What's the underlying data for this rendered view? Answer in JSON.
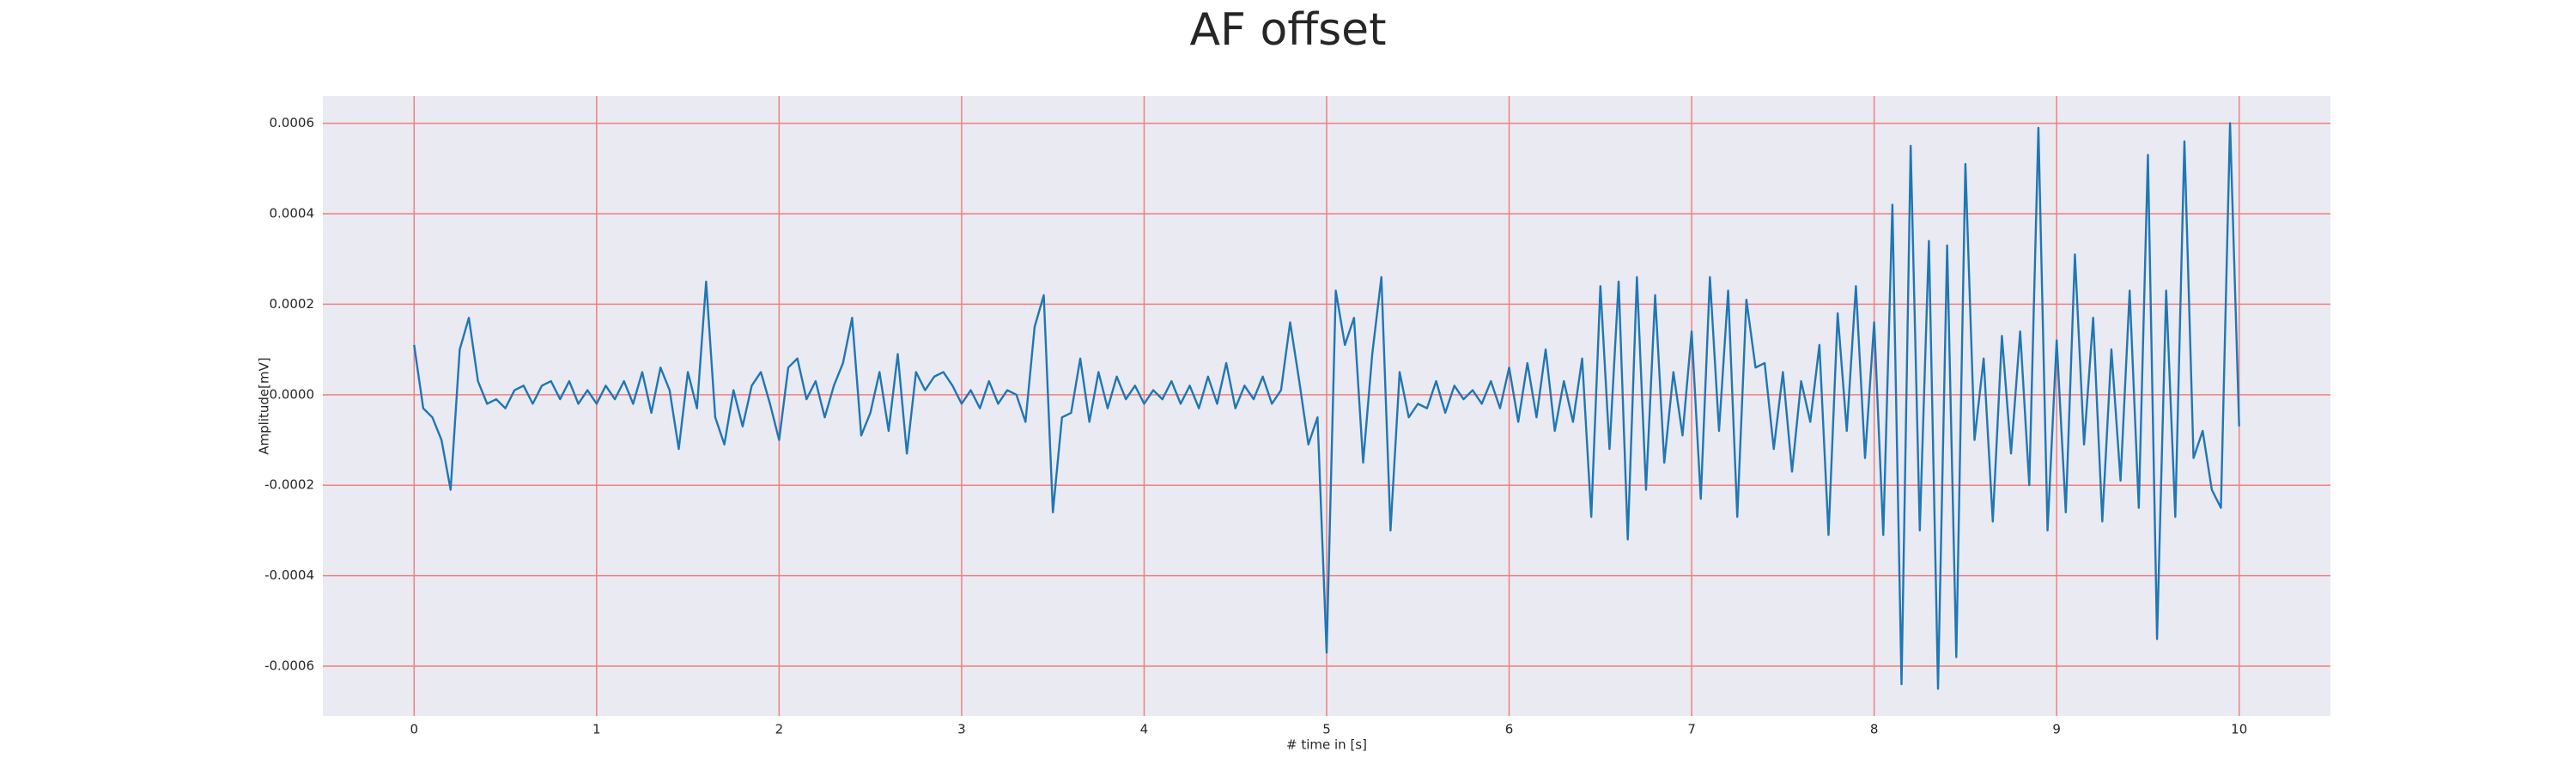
{
  "chart_data": {
    "type": "line",
    "title": "AF offset",
    "x_label": "# time in [s]",
    "y_label": "Amplitude[mV]",
    "x": [
      0,
      0.05,
      0.1,
      0.15,
      0.2,
      0.25,
      0.3,
      0.35,
      0.4,
      0.45,
      0.5,
      0.55,
      0.6,
      0.65,
      0.7,
      0.75,
      0.8,
      0.85,
      0.9,
      0.95,
      1,
      1.05,
      1.1,
      1.15,
      1.2,
      1.25,
      1.3,
      1.35,
      1.4,
      1.45,
      1.5,
      1.55,
      1.6,
      1.65,
      1.7,
      1.75,
      1.8,
      1.85,
      1.9,
      1.95,
      2,
      2.05,
      2.1,
      2.15,
      2.2,
      2.25,
      2.3,
      2.35,
      2.4,
      2.45,
      2.5,
      2.55,
      2.6,
      2.65,
      2.7,
      2.75,
      2.8,
      2.85,
      2.9,
      2.95,
      3,
      3.05,
      3.1,
      3.15,
      3.2,
      3.25,
      3.3,
      3.35,
      3.4,
      3.45,
      3.5,
      3.55,
      3.6,
      3.65,
      3.7,
      3.75,
      3.8,
      3.85,
      3.9,
      3.95,
      4,
      4.05,
      4.1,
      4.15,
      4.2,
      4.25,
      4.3,
      4.35,
      4.4,
      4.45,
      4.5,
      4.55,
      4.6,
      4.65,
      4.7,
      4.75,
      4.8,
      4.85,
      4.9,
      4.95,
      5,
      5.05,
      5.1,
      5.15,
      5.2,
      5.25,
      5.3,
      5.35,
      5.4,
      5.45,
      5.5,
      5.55,
      5.6,
      5.65,
      5.7,
      5.75,
      5.8,
      5.85,
      5.9,
      5.95,
      6,
      6.05,
      6.1,
      6.15,
      6.2,
      6.25,
      6.3,
      6.35,
      6.4,
      6.45,
      6.5,
      6.55,
      6.6,
      6.65,
      6.7,
      6.75,
      6.8,
      6.85,
      6.9,
      6.95,
      7,
      7.05,
      7.1,
      7.15,
      7.2,
      7.25,
      7.3,
      7.35,
      7.4,
      7.45,
      7.5,
      7.55,
      7.6,
      7.65,
      7.7,
      7.75,
      7.8,
      7.85,
      7.9,
      7.95,
      8,
      8.05,
      8.1,
      8.15,
      8.2,
      8.25,
      8.3,
      8.35,
      8.4,
      8.45,
      8.5,
      8.55,
      8.6,
      8.65,
      8.7,
      8.75,
      8.8,
      8.85,
      8.9,
      8.95,
      9,
      9.05,
      9.1,
      9.15,
      9.2,
      9.25,
      9.3,
      9.35,
      9.4,
      9.45,
      9.5,
      9.55,
      9.6,
      9.65,
      9.7,
      9.75,
      9.8,
      9.85,
      9.9,
      9.95,
      10
    ],
    "series": [
      {
        "name": "AF offset",
        "color": "#1f77b4",
        "values": [
          0.00011,
          -3e-05,
          -5e-05,
          -0.0001,
          -0.00021,
          0.0001,
          0.00017,
          3e-05,
          -2e-05,
          -1e-05,
          -3e-05,
          1e-05,
          2e-05,
          -2e-05,
          2e-05,
          3e-05,
          -1e-05,
          3e-05,
          -2e-05,
          1e-05,
          -2e-05,
          2e-05,
          -1e-05,
          3e-05,
          -2e-05,
          5e-05,
          -4e-05,
          6e-05,
          1e-05,
          -0.00012,
          5e-05,
          -3e-05,
          0.00025,
          -5e-05,
          -0.00011,
          1e-05,
          -7e-05,
          2e-05,
          5e-05,
          -2e-05,
          -0.0001,
          6e-05,
          8e-05,
          -1e-05,
          3e-05,
          -5e-05,
          2e-05,
          7e-05,
          0.00017,
          -9e-05,
          -4e-05,
          5e-05,
          -8e-05,
          9e-05,
          -0.00013,
          5e-05,
          1e-05,
          4e-05,
          5e-05,
          2e-05,
          -2e-05,
          1e-05,
          -3e-05,
          3e-05,
          -2e-05,
          1e-05,
          0,
          -6e-05,
          0.00015,
          0.00022,
          -0.00026,
          -5e-05,
          -4e-05,
          8e-05,
          -6e-05,
          5e-05,
          -3e-05,
          4e-05,
          -1e-05,
          2e-05,
          -2e-05,
          1e-05,
          -1e-05,
          3e-05,
          -2e-05,
          2e-05,
          -3e-05,
          4e-05,
          -2e-05,
          7e-05,
          -3e-05,
          2e-05,
          -1e-05,
          4e-05,
          -2e-05,
          1e-05,
          0.00016,
          3e-05,
          -0.00011,
          -5e-05,
          -0.00057,
          0.00023,
          0.00011,
          0.00017,
          -0.00015,
          9e-05,
          0.00026,
          -0.0003,
          5e-05,
          -5e-05,
          -2e-05,
          -3e-05,
          3e-05,
          -4e-05,
          2e-05,
          -1e-05,
          1e-05,
          -2e-05,
          3e-05,
          -3e-05,
          6e-05,
          -6e-05,
          7e-05,
          -5e-05,
          0.0001,
          -8e-05,
          3e-05,
          -6e-05,
          8e-05,
          -0.00027,
          0.00024,
          -0.00012,
          0.00025,
          -0.00032,
          0.00026,
          -0.00021,
          0.00022,
          -0.00015,
          5e-05,
          -9e-05,
          0.00014,
          -0.00023,
          0.00026,
          -8e-05,
          0.00023,
          -0.00027,
          0.00021,
          6e-05,
          7e-05,
          -0.00012,
          5e-05,
          -0.00017,
          3e-05,
          -6e-05,
          0.00011,
          -0.00031,
          0.00018,
          -8e-05,
          0.00024,
          -0.00014,
          0.00016,
          -0.00031,
          0.00042,
          -0.00064,
          0.00055,
          -0.0003,
          0.00034,
          -0.00065,
          0.00033,
          -0.00058,
          0.00051,
          -0.0001,
          8e-05,
          -0.00028,
          0.00013,
          -0.00013,
          0.00014,
          -0.0002,
          0.00059,
          -0.0003,
          0.00012,
          -0.00026,
          0.00031,
          -0.00011,
          0.00017,
          -0.00028,
          0.0001,
          -0.00019,
          0.00023,
          -0.00025,
          0.00053,
          -0.00054,
          0.00023,
          -0.00027,
          0.00056,
          -0.00014,
          -8e-05,
          -0.00021,
          -0.00025,
          0.0006,
          -7e-05
        ]
      }
    ],
    "xlim": [
      -0.5,
      10.5
    ],
    "xticks": [
      0,
      1,
      2,
      3,
      4,
      5,
      6,
      7,
      8,
      9,
      10
    ],
    "ylim": [
      -0.00071,
      0.00066
    ],
    "yticks": [
      {
        "value": -0.0006,
        "label": "-0.0006"
      },
      {
        "value": -0.0004,
        "label": "-0.0004"
      },
      {
        "value": -0.0002,
        "label": "-0.0002"
      },
      {
        "value": 0,
        "label": "0.0000"
      },
      {
        "value": 0.0002,
        "label": "0.0002"
      },
      {
        "value": 0.0004,
        "label": "0.0004"
      },
      {
        "value": 0.0006,
        "label": "0.0006"
      }
    ],
    "grid": true,
    "grid_color": "#f08080",
    "background": "#eaeaf2"
  }
}
